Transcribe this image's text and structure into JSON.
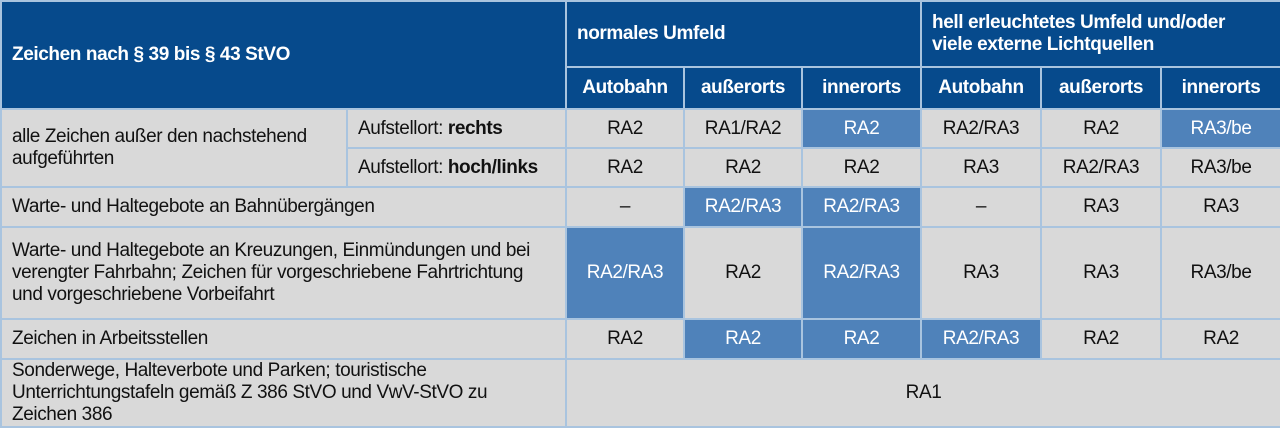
{
  "header": {
    "signs": "Zeichen nach § 39 bis § 43 StVO",
    "group_normal": "normales Umfeld",
    "group_bright": "hell erleuchtetes Umfeld und/oder viele externe Lichtquellen",
    "columns": [
      "Autobahn",
      "außerorts",
      "innerorts",
      "Autobahn",
      "außerorts",
      "innerorts"
    ]
  },
  "colors": {
    "header": "#064a8c",
    "highlight": "#4f82ba",
    "cell": "#d9d9d9",
    "border": "#a9c4df"
  },
  "rows": [
    {
      "label": "alle Zeichen außer den nachstehend aufgeführten",
      "sub_prefix": "Aufstellort: ",
      "sub": "rechts",
      "values": [
        "RA2",
        "RA1/RA2",
        "RA2",
        "RA2/RA3",
        "RA2",
        "RA3/be"
      ],
      "highlight": [
        false,
        false,
        true,
        false,
        false,
        true
      ]
    },
    {
      "sub_prefix": "Aufstellort: ",
      "sub": "hoch/links",
      "values": [
        "RA2",
        "RA2",
        "RA2",
        "RA3",
        "RA2/RA3",
        "RA3/be"
      ],
      "highlight": [
        false,
        false,
        false,
        false,
        false,
        false
      ]
    },
    {
      "label": "Warte- und Haltegebote an Bahnübergängen",
      "values": [
        "–",
        "RA2/RA3",
        "RA2/RA3",
        "–",
        "RA3",
        "RA3"
      ],
      "highlight": [
        false,
        true,
        true,
        false,
        false,
        false
      ]
    },
    {
      "label": "Warte- und Haltegebote an Kreuzungen, Einmündungen und bei verengter Fahrbahn; Zeichen für vorgeschriebene Fahrtrichtung und vorgeschriebene Vorbeifahrt",
      "values": [
        "RA2/RA3",
        "RA2",
        "RA2/RA3",
        "RA3",
        "RA3",
        "RA3/be"
      ],
      "highlight": [
        true,
        false,
        true,
        false,
        false,
        false
      ]
    },
    {
      "label": "Zeichen in Arbeitsstellen",
      "values": [
        "RA2",
        "RA2",
        "RA2",
        "RA2/RA3",
        "RA2",
        "RA2"
      ],
      "highlight": [
        false,
        true,
        true,
        true,
        false,
        false
      ]
    },
    {
      "label": "Sonderwege, Halteverbote und Parken; touristische Unterrichtungstafeln gemäß Z 386 StVO und VwV-StVO zu Zeichen 386",
      "value_all": "RA1"
    }
  ]
}
